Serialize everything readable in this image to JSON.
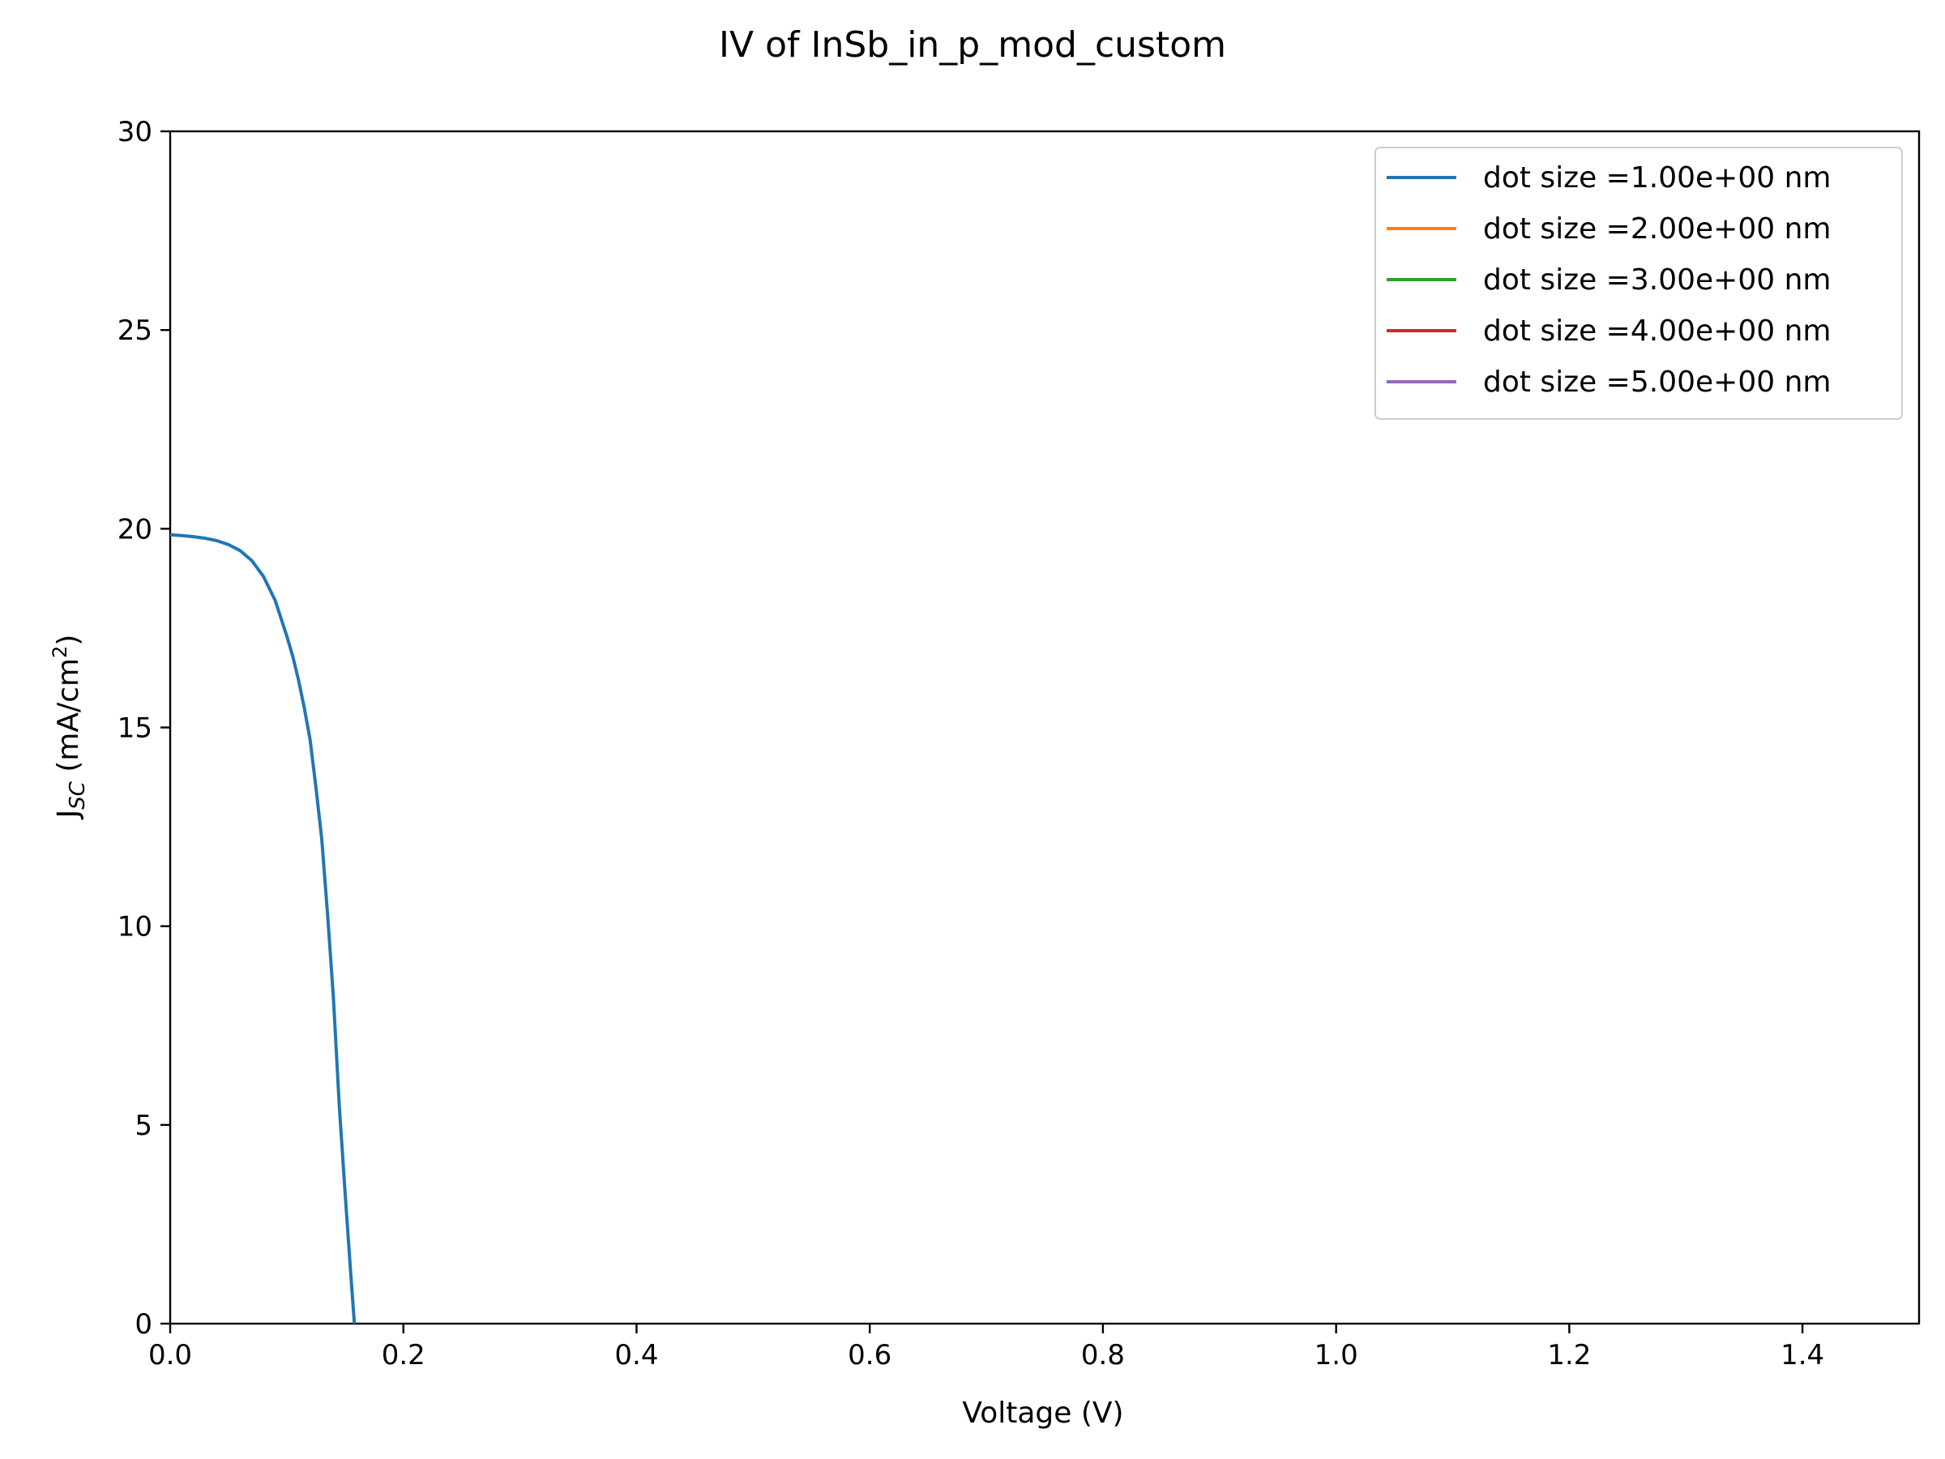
{
  "chart_data": {
    "type": "line",
    "title": "IV of InSb_in_p_mod_custom",
    "xlabel": "Voltage (V)",
    "ylabel": {
      "main": "J",
      "sub": "SC",
      "unit_pre": " (mA/cm",
      "unit_sup": "2",
      "unit_post": ")"
    },
    "xlim": [
      0,
      1.5
    ],
    "ylim": [
      0,
      30
    ],
    "xticks": [
      0.0,
      0.2,
      0.4,
      0.6,
      0.8,
      1.0,
      1.2,
      1.4
    ],
    "xtick_labels": [
      "0.0",
      "0.2",
      "0.4",
      "0.6",
      "0.8",
      "1.0",
      "1.2",
      "1.4"
    ],
    "yticks": [
      0,
      5,
      10,
      15,
      20,
      25,
      30
    ],
    "ytick_labels": [
      "0",
      "5",
      "10",
      "15",
      "20",
      "25",
      "30"
    ],
    "grid": false,
    "legend_position": "top-right",
    "series": [
      {
        "name": "dot size =1.00e+00 nm",
        "color": "#1f77b4",
        "x": [
          0.0,
          0.01,
          0.02,
          0.03,
          0.04,
          0.05,
          0.06,
          0.07,
          0.08,
          0.09,
          0.1,
          0.105,
          0.11,
          0.115,
          0.12,
          0.125,
          0.13,
          0.135,
          0.14,
          0.145,
          0.15,
          0.155,
          0.158
        ],
        "y": [
          19.85,
          19.83,
          19.8,
          19.76,
          19.7,
          19.6,
          19.45,
          19.2,
          18.8,
          18.2,
          17.3,
          16.8,
          16.2,
          15.5,
          14.7,
          13.5,
          12.2,
          10.3,
          8.2,
          5.5,
          3.3,
          1.2,
          0.0
        ]
      },
      {
        "name": "dot size =2.00e+00 nm",
        "color": "#ff7f0e",
        "x": [],
        "y": []
      },
      {
        "name": "dot size =3.00e+00 nm",
        "color": "#2ca02c",
        "x": [],
        "y": []
      },
      {
        "name": "dot size =4.00e+00 nm",
        "color": "#d62728",
        "x": [],
        "y": []
      },
      {
        "name": "dot size =5.00e+00 nm",
        "color": "#9467bd",
        "x": [],
        "y": []
      }
    ]
  }
}
